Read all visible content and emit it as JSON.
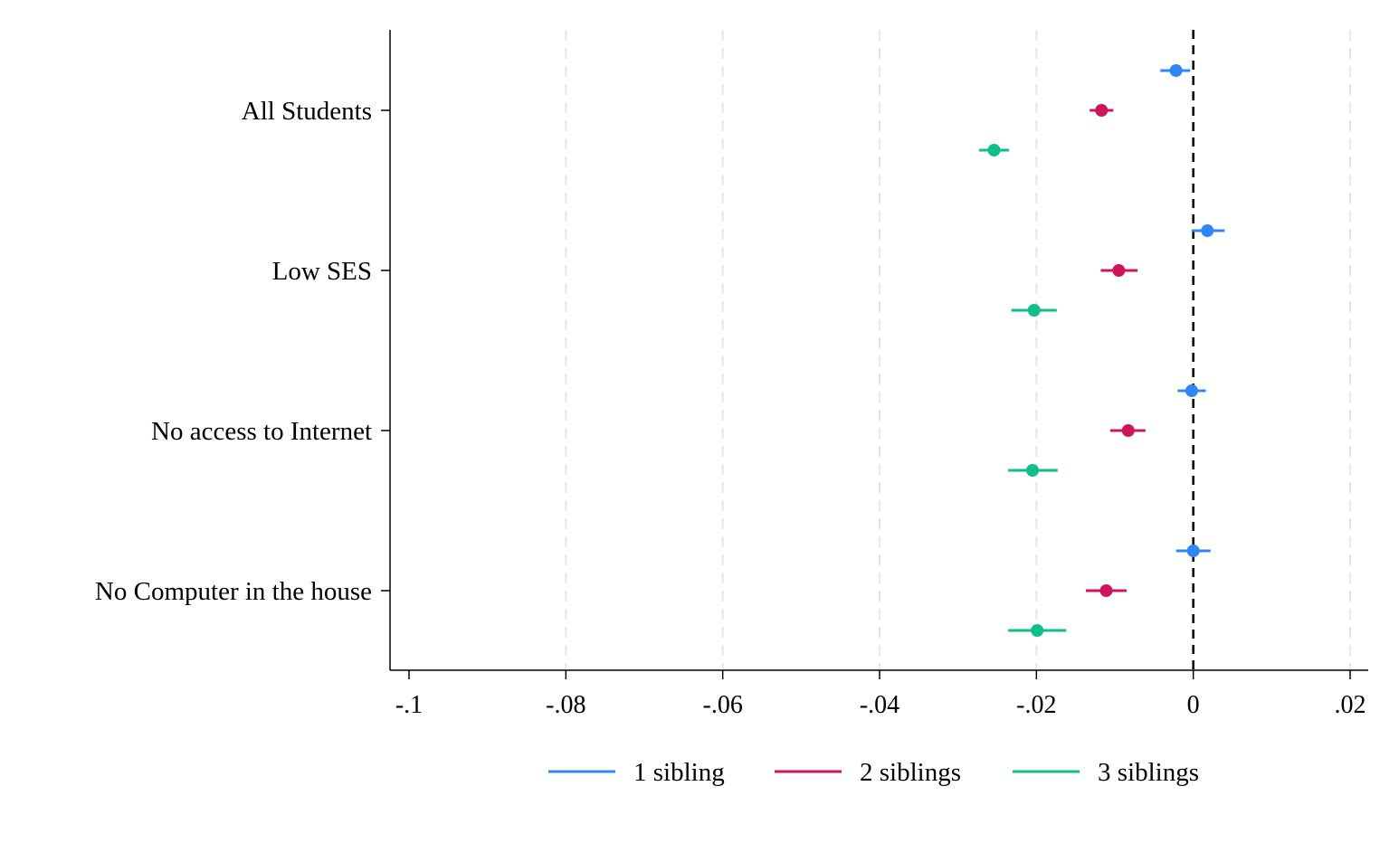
{
  "chart_data": {
    "type": "coefficient_plot",
    "title": "",
    "xlabel": "",
    "ylabel": "",
    "xlim": [
      -0.1,
      0.02
    ],
    "x_ticks": [
      -0.1,
      -0.08,
      -0.06,
      -0.04,
      -0.02,
      0,
      0.02
    ],
    "x_tick_labels": [
      "-.1",
      "-.08",
      "-.06",
      "-.04",
      "-.02",
      "0",
      ".02"
    ],
    "reference_line": 0,
    "grid": "vertical dashed",
    "legend_position": "bottom",
    "categories": [
      "All Students",
      "Low SES",
      "No access to Internet",
      "No Computer in the house"
    ],
    "series": [
      {
        "name": "1 sibling",
        "color": "#2f86f6",
        "points": [
          {
            "estimate": -0.0022,
            "ci_low": -0.0042,
            "ci_high": -0.0004
          },
          {
            "estimate": 0.0018,
            "ci_low": -0.0002,
            "ci_high": 0.004
          },
          {
            "estimate": -0.0002,
            "ci_low": -0.002,
            "ci_high": 0.0016
          },
          {
            "estimate": 0.0,
            "ci_low": -0.0022,
            "ci_high": 0.0022
          }
        ]
      },
      {
        "name": "2 siblings",
        "color": "#d0145a",
        "points": [
          {
            "estimate": -0.0117,
            "ci_low": -0.0132,
            "ci_high": -0.0102
          },
          {
            "estimate": -0.0095,
            "ci_low": -0.0118,
            "ci_high": -0.0071
          },
          {
            "estimate": -0.0083,
            "ci_low": -0.0106,
            "ci_high": -0.0061
          },
          {
            "estimate": -0.0111,
            "ci_low": -0.0137,
            "ci_high": -0.0085
          }
        ]
      },
      {
        "name": "3 siblings",
        "color": "#0fbf8a",
        "points": [
          {
            "estimate": -0.0254,
            "ci_low": -0.0273,
            "ci_high": -0.0235
          },
          {
            "estimate": -0.0203,
            "ci_low": -0.0232,
            "ci_high": -0.0174
          },
          {
            "estimate": -0.0205,
            "ci_low": -0.0236,
            "ci_high": -0.0173
          },
          {
            "estimate": -0.0199,
            "ci_low": -0.0236,
            "ci_high": -0.0162
          }
        ]
      }
    ]
  }
}
